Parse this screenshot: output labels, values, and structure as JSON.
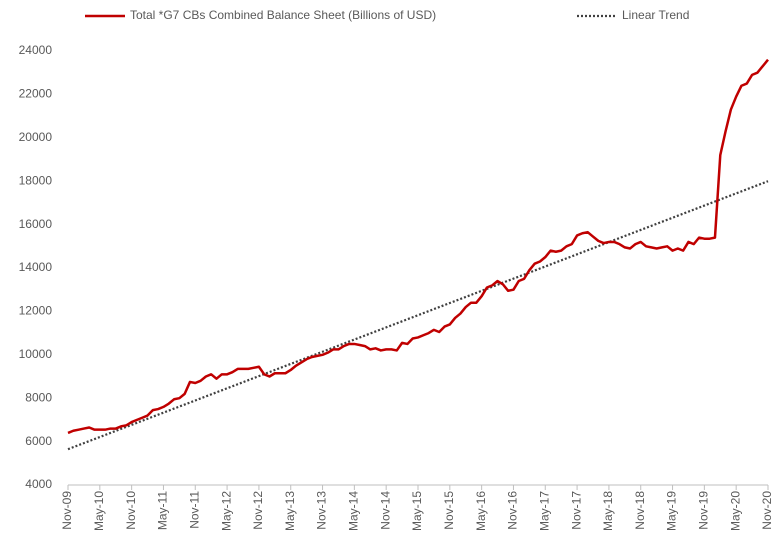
{
  "chart_data": {
    "type": "line",
    "categories": [
      "Nov-09",
      null,
      null,
      null,
      null,
      null,
      "May-10",
      null,
      null,
      null,
      null,
      null,
      "Nov-10",
      null,
      null,
      null,
      null,
      null,
      "May-11",
      null,
      null,
      null,
      null,
      null,
      "Nov-11",
      null,
      null,
      null,
      null,
      null,
      "May-12",
      null,
      null,
      null,
      null,
      null,
      "Nov-12",
      null,
      null,
      null,
      null,
      null,
      "May-13",
      null,
      null,
      null,
      null,
      null,
      "Nov-13",
      null,
      null,
      null,
      null,
      null,
      "May-14",
      null,
      null,
      null,
      null,
      null,
      "Nov-14",
      null,
      null,
      null,
      null,
      null,
      "May-15",
      null,
      null,
      null,
      null,
      null,
      "Nov-15",
      null,
      null,
      null,
      null,
      null,
      "May-16",
      null,
      null,
      null,
      null,
      null,
      "Nov-16",
      null,
      null,
      null,
      null,
      null,
      "May-17",
      null,
      null,
      null,
      null,
      null,
      "Nov-17",
      null,
      null,
      null,
      null,
      null,
      "May-18",
      null,
      null,
      null,
      null,
      null,
      "Nov-18",
      null,
      null,
      null,
      null,
      null,
      "May-19",
      null,
      null,
      null,
      null,
      null,
      "Nov-19",
      null,
      null,
      null,
      null,
      null,
      "May-20",
      null,
      null,
      null,
      null,
      null,
      "Nov-20"
    ],
    "series": [
      {
        "name": "Total *G7 CBs Combined Balance Sheet (Billions of USD)",
        "color": "#c00000",
        "dash": false,
        "values": [
          6400,
          6500,
          6550,
          6600,
          6650,
          6550,
          6550,
          6550,
          6600,
          6600,
          6700,
          6750,
          6900,
          7000,
          7100,
          7200,
          7450,
          7500,
          7600,
          7750,
          7950,
          8000,
          8200,
          8750,
          8700,
          8800,
          9000,
          9100,
          8900,
          9100,
          9100,
          9200,
          9350,
          9350,
          9350,
          9400,
          9450,
          9100,
          9000,
          9150,
          9150,
          9150,
          9300,
          9500,
          9650,
          9800,
          9900,
          9950,
          10000,
          10100,
          10250,
          10250,
          10400,
          10500,
          10500,
          10450,
          10400,
          10250,
          10300,
          10200,
          10250,
          10250,
          10200,
          10550,
          10500,
          10750,
          10800,
          10900,
          11000,
          11150,
          11050,
          11300,
          11400,
          11700,
          11900,
          12200,
          12400,
          12400,
          12700,
          13100,
          13200,
          13400,
          13250,
          12950,
          13000,
          13400,
          13500,
          13900,
          14200,
          14300,
          14500,
          14800,
          14750,
          14800,
          15000,
          15100,
          15500,
          15600,
          15650,
          15450,
          15250,
          15150,
          15200,
          15200,
          15100,
          14950,
          14900,
          15100,
          15200,
          15000,
          14950,
          14900,
          14950,
          15000,
          14800,
          14900,
          14800,
          15200,
          15100,
          15400,
          15350,
          15350,
          15400,
          19200,
          20300,
          21300,
          21900,
          22400,
          22500,
          22900,
          23000,
          23300,
          23600
        ]
      },
      {
        "name": "Linear Trend",
        "color": "#404040",
        "dash": true,
        "values": [
          5650,
          5744,
          5837,
          5931,
          6024,
          6118,
          6211,
          6305,
          6398,
          6492,
          6586,
          6679,
          6773,
          6866,
          6960,
          7053,
          7147,
          7240,
          7334,
          7428,
          7521,
          7615,
          7708,
          7802,
          7895,
          7989,
          8083,
          8176,
          8270,
          8363,
          8457,
          8550,
          8644,
          8737,
          8831,
          8925,
          9018,
          9112,
          9205,
          9299,
          9392,
          9486,
          9580,
          9673,
          9767,
          9860,
          9954,
          10047,
          10141,
          10234,
          10328,
          10422,
          10515,
          10609,
          10702,
          10796,
          10889,
          10983,
          11076,
          11170,
          11264,
          11357,
          11451,
          11544,
          11638,
          11731,
          11825,
          11919,
          12012,
          12106,
          12199,
          12293,
          12386,
          12480,
          12573,
          12667,
          12761,
          12854,
          12948,
          13041,
          13135,
          13228,
          13322,
          13416,
          13509,
          13603,
          13696,
          13790,
          13883,
          13977,
          14070,
          14164,
          14258,
          14351,
          14445,
          14538,
          14632,
          14725,
          14819,
          14913,
          15006,
          15100,
          15193,
          15287,
          15380,
          15474,
          15567,
          15661,
          15755,
          15848,
          15942,
          16035,
          16129,
          16222,
          16316,
          16410,
          16503,
          16597,
          16690,
          16784,
          16877,
          16971,
          17064,
          17158,
          17252,
          17345,
          17439,
          17532,
          17626,
          17719,
          17813,
          17906,
          18000
        ]
      }
    ],
    "ylim": [
      4000,
      24000
    ],
    "yticks": [
      4000,
      6000,
      8000,
      10000,
      12000,
      14000,
      16000,
      18000,
      20000,
      22000,
      24000
    ],
    "grid": false
  }
}
